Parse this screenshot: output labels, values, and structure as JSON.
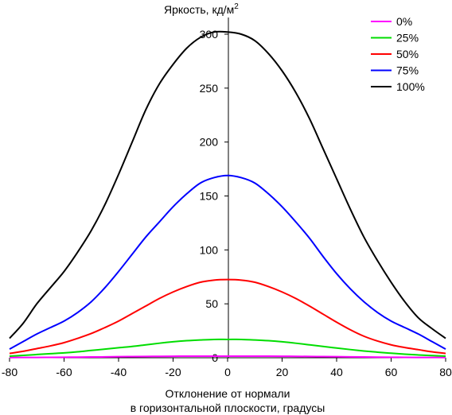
{
  "chart_data": {
    "type": "line",
    "title": "",
    "ylabel": "Яркость, кд/м",
    "ylabel_sup": "2",
    "xlabel_line1": "Отклонение от нормали",
    "xlabel_line2": "в горизонтальной плоскости, градусы",
    "xlim": [
      -80,
      80
    ],
    "ylim": [
      0,
      310
    ],
    "x_ticks": [
      "-80",
      "-60",
      "-40",
      "-20",
      "0",
      "20",
      "40",
      "60",
      "80"
    ],
    "y_ticks": [
      "0",
      "50",
      "100",
      "150",
      "200",
      "250",
      "300"
    ],
    "grid": false,
    "legend_position": "top-right",
    "x": [
      -80,
      -75,
      -70,
      -65,
      -60,
      -55,
      -50,
      -45,
      -40,
      -35,
      -30,
      -25,
      -20,
      -15,
      -10,
      -5,
      0,
      5,
      10,
      15,
      20,
      25,
      30,
      35,
      40,
      45,
      50,
      55,
      60,
      65,
      70,
      75,
      80
    ],
    "series": [
      {
        "name": "0%",
        "color": "#ff00ff",
        "values": [
          0.2,
          0.3,
          0.3,
          0.4,
          0.5,
          0.6,
          0.7,
          0.8,
          1,
          1.1,
          1.2,
          1.3,
          1.4,
          1.5,
          1.5,
          1.5,
          1.5,
          1.5,
          1.5,
          1.5,
          1.4,
          1.3,
          1.2,
          1.1,
          1,
          0.8,
          0.7,
          0.6,
          0.5,
          0.4,
          0.3,
          0.3,
          0.2
        ]
      },
      {
        "name": "25%",
        "color": "#00dd00",
        "values": [
          1.5,
          2.2,
          3,
          3.8,
          4.5,
          5.5,
          6.8,
          8,
          9.3,
          10.5,
          12,
          13.5,
          14.8,
          15.8,
          16.5,
          17,
          17,
          17,
          16.5,
          15.8,
          14.8,
          13.5,
          12,
          10.5,
          9,
          7.6,
          6.3,
          5.2,
          4.2,
          3.3,
          2.6,
          2,
          1.5
        ]
      },
      {
        "name": "50%",
        "color": "#ff0000",
        "values": [
          4,
          6,
          8.5,
          11,
          14,
          18,
          22.5,
          28,
          34,
          41,
          48,
          55,
          61,
          66,
          70,
          72,
          72.5,
          72,
          70,
          66,
          61,
          55,
          48,
          40.5,
          33,
          26,
          20,
          15.5,
          12,
          9.5,
          7.5,
          5.5,
          4
        ]
      },
      {
        "name": "75%",
        "color": "#0000ff",
        "values": [
          8,
          15,
          22,
          28,
          34,
          42,
          52,
          65,
          80,
          96,
          112,
          126,
          140,
          152,
          162,
          167,
          169,
          167,
          162,
          152,
          140,
          126,
          111,
          94,
          78,
          64,
          52,
          42,
          34,
          28,
          22,
          15,
          8
        ]
      },
      {
        "name": "100%",
        "color": "#000000",
        "values": [
          18,
          32,
          50,
          65,
          80,
          98,
          118,
          142,
          170,
          200,
          230,
          254,
          272,
          287,
          297,
          302,
          302,
          300,
          294,
          282,
          266,
          246,
          222,
          194,
          166,
          138,
          112,
          90,
          70,
          52,
          37,
          27,
          18
        ]
      }
    ]
  }
}
